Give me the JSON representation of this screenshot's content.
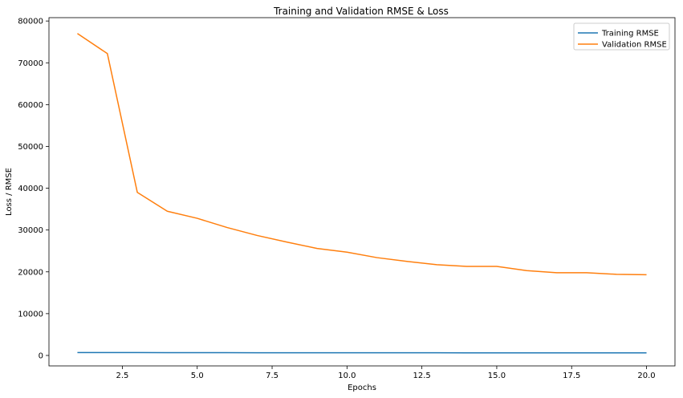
{
  "chart_data": {
    "type": "line",
    "title": "Training and Validation RMSE & Loss",
    "xlabel": "Epochs",
    "ylabel": "Loss / RMSE",
    "xlim": [
      0.05,
      20.95
    ],
    "ylim": [
      -2500,
      80800
    ],
    "xticks": [
      2.5,
      5.0,
      7.5,
      10.0,
      12.5,
      15.0,
      17.5,
      20.0
    ],
    "xtick_labels": [
      "2.5",
      "5.0",
      "7.5",
      "10.0",
      "12.5",
      "15.0",
      "17.5",
      "20.0"
    ],
    "yticks": [
      0,
      10000,
      20000,
      30000,
      40000,
      50000,
      60000,
      70000,
      80000
    ],
    "ytick_labels": [
      "0",
      "10000",
      "20000",
      "30000",
      "40000",
      "50000",
      "60000",
      "70000",
      "80000"
    ],
    "grid": false,
    "legend_position": "top-right",
    "x": [
      1,
      2,
      3,
      4,
      5,
      6,
      7,
      8,
      9,
      10,
      11,
      12,
      13,
      14,
      15,
      16,
      17,
      18,
      19,
      20
    ],
    "series": [
      {
        "name": "Training RMSE",
        "color": "#1f77b4",
        "values": [
          700,
          690,
          680,
          670,
          660,
          660,
          650,
          650,
          650,
          640,
          640,
          640,
          640,
          630,
          630,
          630,
          630,
          620,
          620,
          620
        ]
      },
      {
        "name": "Validation RMSE",
        "color": "#ff7f0e",
        "values": [
          77000,
          72200,
          39000,
          34500,
          32800,
          30600,
          28700,
          27100,
          25600,
          24700,
          23400,
          22500,
          21700,
          21300,
          21300,
          20300,
          19800,
          19800,
          19400,
          19300
        ]
      }
    ]
  }
}
